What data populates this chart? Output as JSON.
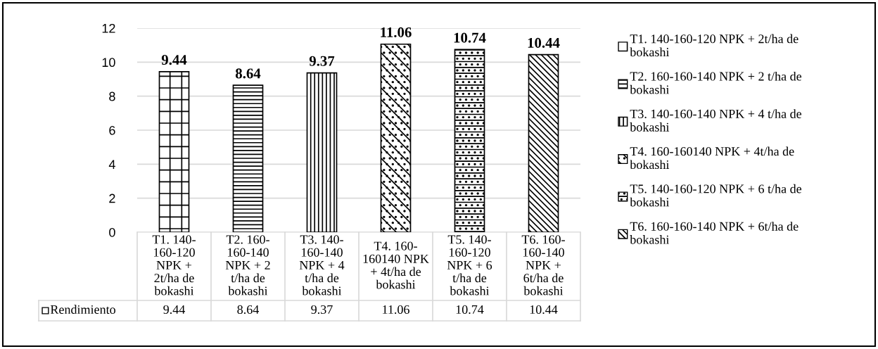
{
  "chart_data": {
    "type": "bar",
    "categories": [
      "T1. 140-160-120 NPK + 2t/ha de bokashi",
      "T2. 160-160-140 NPK + 2 t/ha de bokashi",
      "T3. 140-160-140 NPK + 4 t/ha de bokashi",
      "T4. 160-160140 NPK + 4t/ha de bokashi",
      "T5. 140-160-120 NPK + 6 t/ha de bokashi",
      "T6. 160-160-140 NPK + 6t/ha de bokashi"
    ],
    "series": [
      {
        "name": "Rendimiento",
        "color": "#000000",
        "values": [
          9.44,
          8.64,
          9.37,
          11.06,
          10.74,
          10.44
        ],
        "value_labels": [
          "9.44",
          "8.64",
          "9.37",
          "11.06",
          "10.74",
          "10.44"
        ]
      }
    ],
    "ylim": [
      0,
      12
    ],
    "yticks": [
      0,
      2,
      4,
      6,
      8,
      10,
      12
    ],
    "grid": "y",
    "legend": "bottom left",
    "annotations": [
      "9.44",
      "8.64",
      "9.37",
      "11.06",
      "10.74",
      "10.44"
    ]
  }
}
